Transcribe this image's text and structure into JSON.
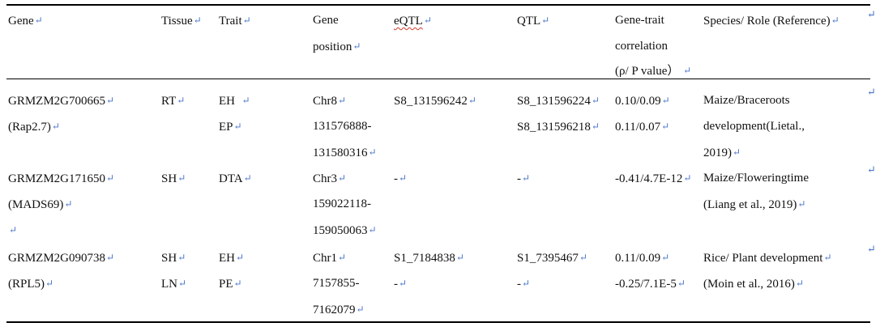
{
  "table": {
    "headers": {
      "gene": "Gene",
      "tissue": "Tissue",
      "trait": "Trait",
      "position_1": "Gene",
      "position_2": "position",
      "eqtl": "eQTL",
      "qtl": "QTL",
      "corr_1": "Gene-trait",
      "corr_2": "correlation",
      "corr_3": "(ρ/ P value）",
      "species": "Species/ Role (Reference)"
    },
    "paragraph_mark": "↵",
    "rows": [
      {
        "gene": "GRMZM2G700665",
        "gene_alias": "(Rap2.7)",
        "tissue": "RT",
        "trait_1": "EH",
        "trait_2": "EP",
        "chr": "Chr8",
        "pos_start": "131576888-",
        "pos_end": "131580316",
        "eqtl": "S8_131596242",
        "qtl_1": "S8_131596224",
        "qtl_2": "S8_131596218",
        "corr_1": "0.10/0.09",
        "corr_2": "0.11/0.07",
        "species_a1": "Maize/",
        "species_a2": "Brace",
        "species_a3": "roots",
        "species_b1": "development",
        "species_b2": "(Li",
        "species_b3": "et",
        "species_b4": "al.,",
        "species_c": "2019)"
      },
      {
        "gene": "GRMZM2G171650",
        "gene_alias": "(MADS69)",
        "tissue": "SH",
        "trait_1": "DTA",
        "chr": "Chr3",
        "pos_start": "159022118-",
        "pos_end": "159050063",
        "eqtl": "-",
        "qtl_1": "-",
        "corr_1": "-0.41/4.7E-12",
        "species_a1": "Maize/",
        "species_a2": "Flowering",
        "species_a3": "time",
        "species_b": "(Liang et al., 2019)"
      },
      {
        "gene": "GRMZM2G090738",
        "gene_alias": "(RPL5)",
        "tissue_1": "SH",
        "tissue_2": "LN",
        "trait_1": "EH",
        "trait_2": "PE",
        "chr": "Chr1",
        "pos_start": "7157855-",
        "pos_end": "7162079",
        "eqtl_1": "S1_7184838",
        "eqtl_2": "-",
        "qtl_1": "S1_7395467",
        "qtl_2": "-",
        "corr_1": "0.11/0.09",
        "corr_2": "-0.25/7.1E-5",
        "species_a": "Rice/ Plant development",
        "species_b": "(Moin et al., 2016)"
      }
    ]
  }
}
